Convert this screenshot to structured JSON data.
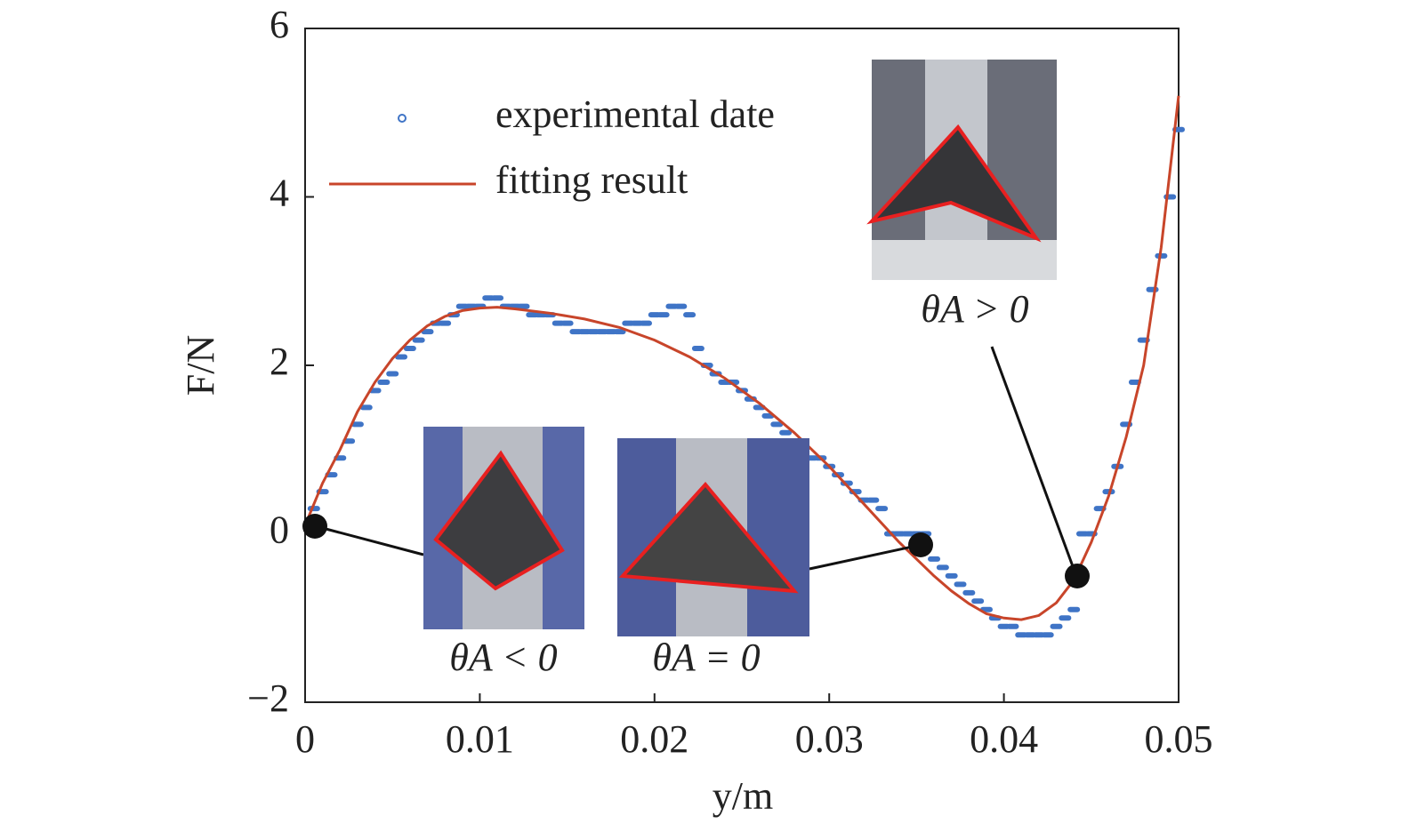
{
  "chart_data": {
    "type": "scatter",
    "xlabel": "y/m",
    "ylabel": "F/N",
    "xlim": [
      0,
      0.05
    ],
    "ylim": [
      -2,
      6
    ],
    "xticks": [
      0,
      0.01,
      0.02,
      0.03,
      0.04,
      0.05
    ],
    "yticks": [
      {
        "value": -2,
        "label": "−2"
      },
      0,
      2,
      4,
      6
    ],
    "annotations": [
      "θA < 0",
      "θA = 0",
      "θA > 0"
    ],
    "series": [
      {
        "name": "experimental date",
        "type": "scatter",
        "color": "#3f74c6",
        "x": [
          0.0005,
          0.001,
          0.0015,
          0.002,
          0.0025,
          0.003,
          0.0035,
          0.004,
          0.0045,
          0.005,
          0.0055,
          0.006,
          0.0065,
          0.007,
          0.0075,
          0.008,
          0.0085,
          0.009,
          0.0095,
          0.01,
          0.0105,
          0.011,
          0.0115,
          0.012,
          0.0125,
          0.013,
          0.0135,
          0.014,
          0.0145,
          0.015,
          0.0155,
          0.016,
          0.0165,
          0.017,
          0.0175,
          0.018,
          0.0185,
          0.019,
          0.0195,
          0.02,
          0.0205,
          0.021,
          0.0215,
          0.022,
          0.0225,
          0.023,
          0.0235,
          0.024,
          0.0245,
          0.025,
          0.0255,
          0.026,
          0.0265,
          0.027,
          0.0275,
          0.028,
          0.0285,
          0.029,
          0.0295,
          0.03,
          0.0305,
          0.031,
          0.0315,
          0.032,
          0.0325,
          0.033,
          0.0335,
          0.034,
          0.0345,
          0.035,
          0.0355,
          0.036,
          0.0365,
          0.037,
          0.0375,
          0.038,
          0.0385,
          0.039,
          0.0395,
          0.04,
          0.0405,
          0.041,
          0.0415,
          0.042,
          0.0425,
          0.043,
          0.0435,
          0.044,
          0.0445,
          0.045,
          0.0455,
          0.046,
          0.0465,
          0.047,
          0.0475,
          0.048,
          0.0485,
          0.049,
          0.0495,
          0.05
        ],
        "values": [
          0.3,
          0.5,
          0.7,
          0.9,
          1.1,
          1.3,
          1.5,
          1.7,
          1.8,
          1.9,
          2.1,
          2.2,
          2.3,
          2.4,
          2.5,
          2.5,
          2.6,
          2.7,
          2.7,
          2.7,
          2.8,
          2.8,
          2.7,
          2.7,
          2.7,
          2.6,
          2.6,
          2.6,
          2.5,
          2.5,
          2.4,
          2.4,
          2.4,
          2.4,
          2.4,
          2.4,
          2.5,
          2.5,
          2.5,
          2.6,
          2.6,
          2.7,
          2.7,
          2.6,
          2.2,
          2.0,
          1.9,
          1.8,
          1.8,
          1.7,
          1.6,
          1.5,
          1.4,
          1.3,
          1.2,
          1.1,
          1.0,
          0.9,
          0.9,
          0.8,
          0.7,
          0.6,
          0.5,
          0.4,
          0.4,
          0.3,
          0.0,
          0.0,
          0.0,
          0.0,
          0.0,
          -0.3,
          -0.4,
          -0.5,
          -0.6,
          -0.7,
          -0.8,
          -0.9,
          -1.0,
          -1.1,
          -1.1,
          -1.2,
          -1.2,
          -1.2,
          -1.2,
          -1.1,
          -1.0,
          -0.9,
          0.0,
          0.0,
          0.3,
          0.5,
          0.8,
          1.3,
          1.8,
          2.3,
          2.9,
          3.3,
          4.0,
          4.8
        ]
      },
      {
        "name": "fitting result",
        "type": "line",
        "color": "#c8452a",
        "x": [
          0,
          0.001,
          0.002,
          0.003,
          0.004,
          0.005,
          0.006,
          0.007,
          0.008,
          0.009,
          0.01,
          0.011,
          0.012,
          0.014,
          0.016,
          0.018,
          0.02,
          0.022,
          0.024,
          0.026,
          0.028,
          0.03,
          0.032,
          0.034,
          0.036,
          0.037,
          0.038,
          0.039,
          0.04,
          0.041,
          0.042,
          0.043,
          0.044,
          0.045,
          0.046,
          0.047,
          0.048,
          0.049,
          0.05
        ],
        "values": [
          0.1,
          0.6,
          1.0,
          1.45,
          1.8,
          2.08,
          2.3,
          2.47,
          2.58,
          2.65,
          2.68,
          2.69,
          2.67,
          2.62,
          2.55,
          2.45,
          2.3,
          2.1,
          1.85,
          1.55,
          1.2,
          0.8,
          0.35,
          -0.1,
          -0.5,
          -0.68,
          -0.83,
          -0.95,
          -1.0,
          -1.02,
          -0.97,
          -0.82,
          -0.55,
          -0.1,
          0.45,
          1.15,
          2.0,
          3.4,
          5.2
        ]
      }
    ]
  }
}
